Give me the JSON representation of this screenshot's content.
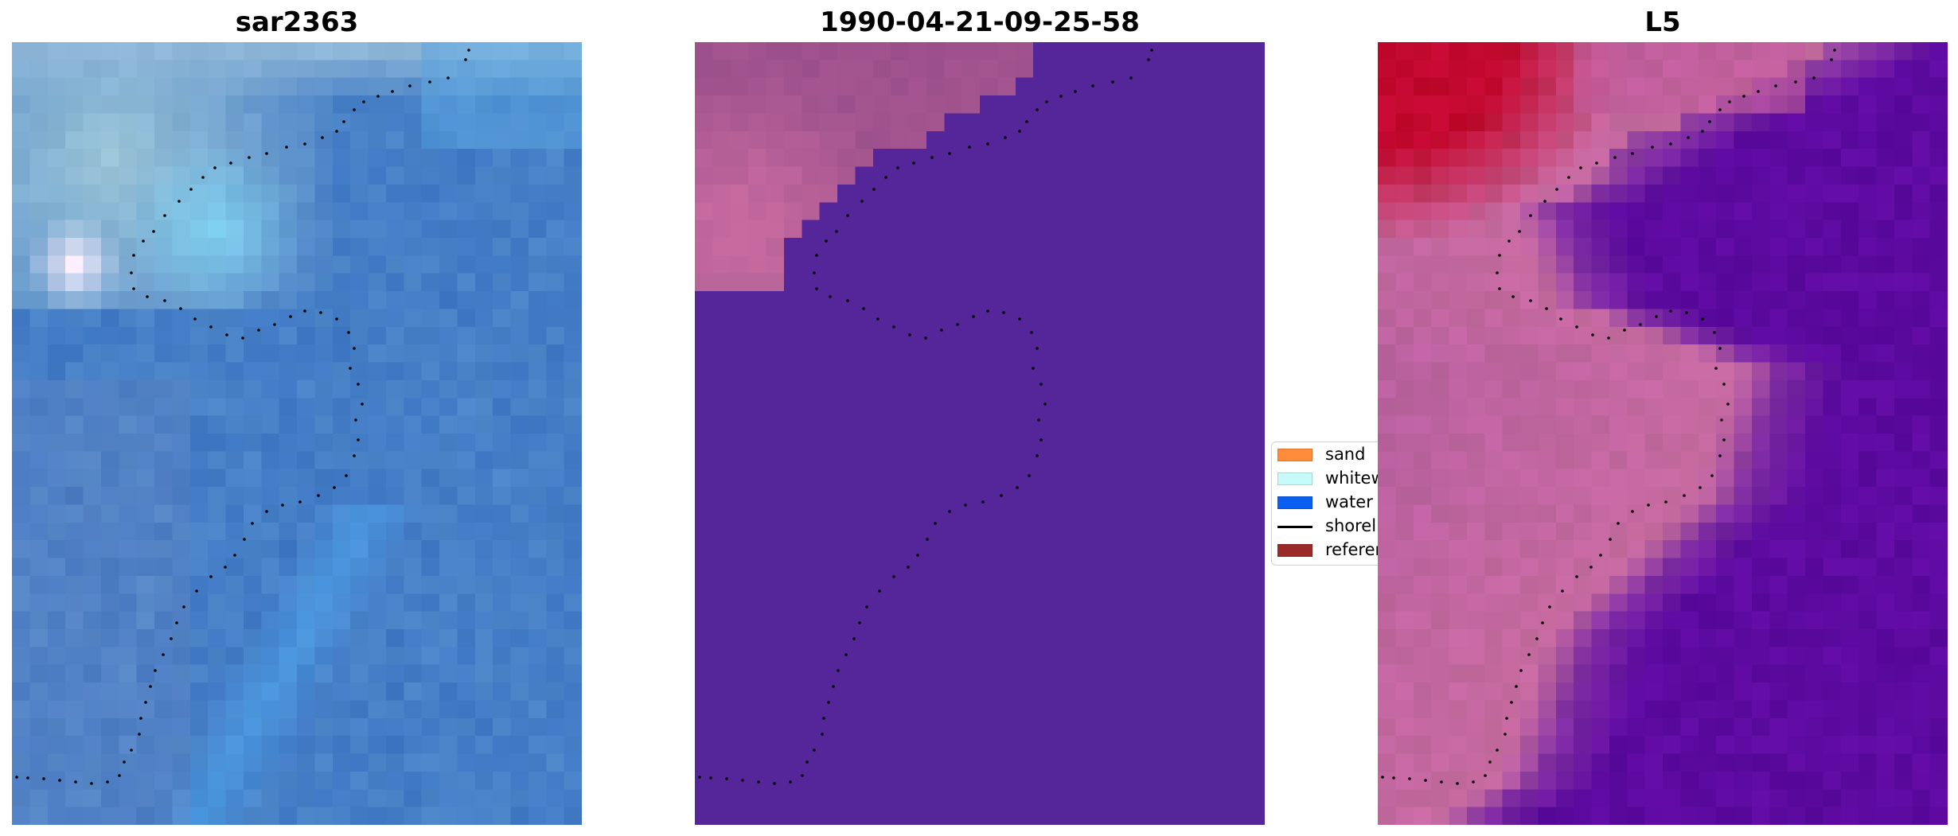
{
  "panels": [
    {
      "title": "sar2363",
      "colormap": "blues-composite"
    },
    {
      "title": "1990-04-21-09-25-58",
      "colormap": "classification-overlay"
    },
    {
      "title": "L5",
      "colormap": "index-red-purple"
    }
  ],
  "legend": {
    "items": [
      {
        "label": "sand",
        "color": "#ff8c3b",
        "kind": "patch"
      },
      {
        "label": "whitewater",
        "color": "#c8fafa",
        "kind": "patch"
      },
      {
        "label": "water",
        "color": "#0a5ff0",
        "kind": "patch"
      },
      {
        "label": "shoreline",
        "color": "#000000",
        "kind": "line"
      },
      {
        "label": "reference",
        "color": "#9a2a2a",
        "kind": "patch"
      }
    ]
  },
  "colors": {
    "classification_water": "#55259a",
    "classification_sand_overlay": "#9a4f8a",
    "index_high": "#c2082e",
    "index_mid": "#c66aa0",
    "index_low": "#5d0aa0",
    "shoreline_dots": "#000000"
  }
}
